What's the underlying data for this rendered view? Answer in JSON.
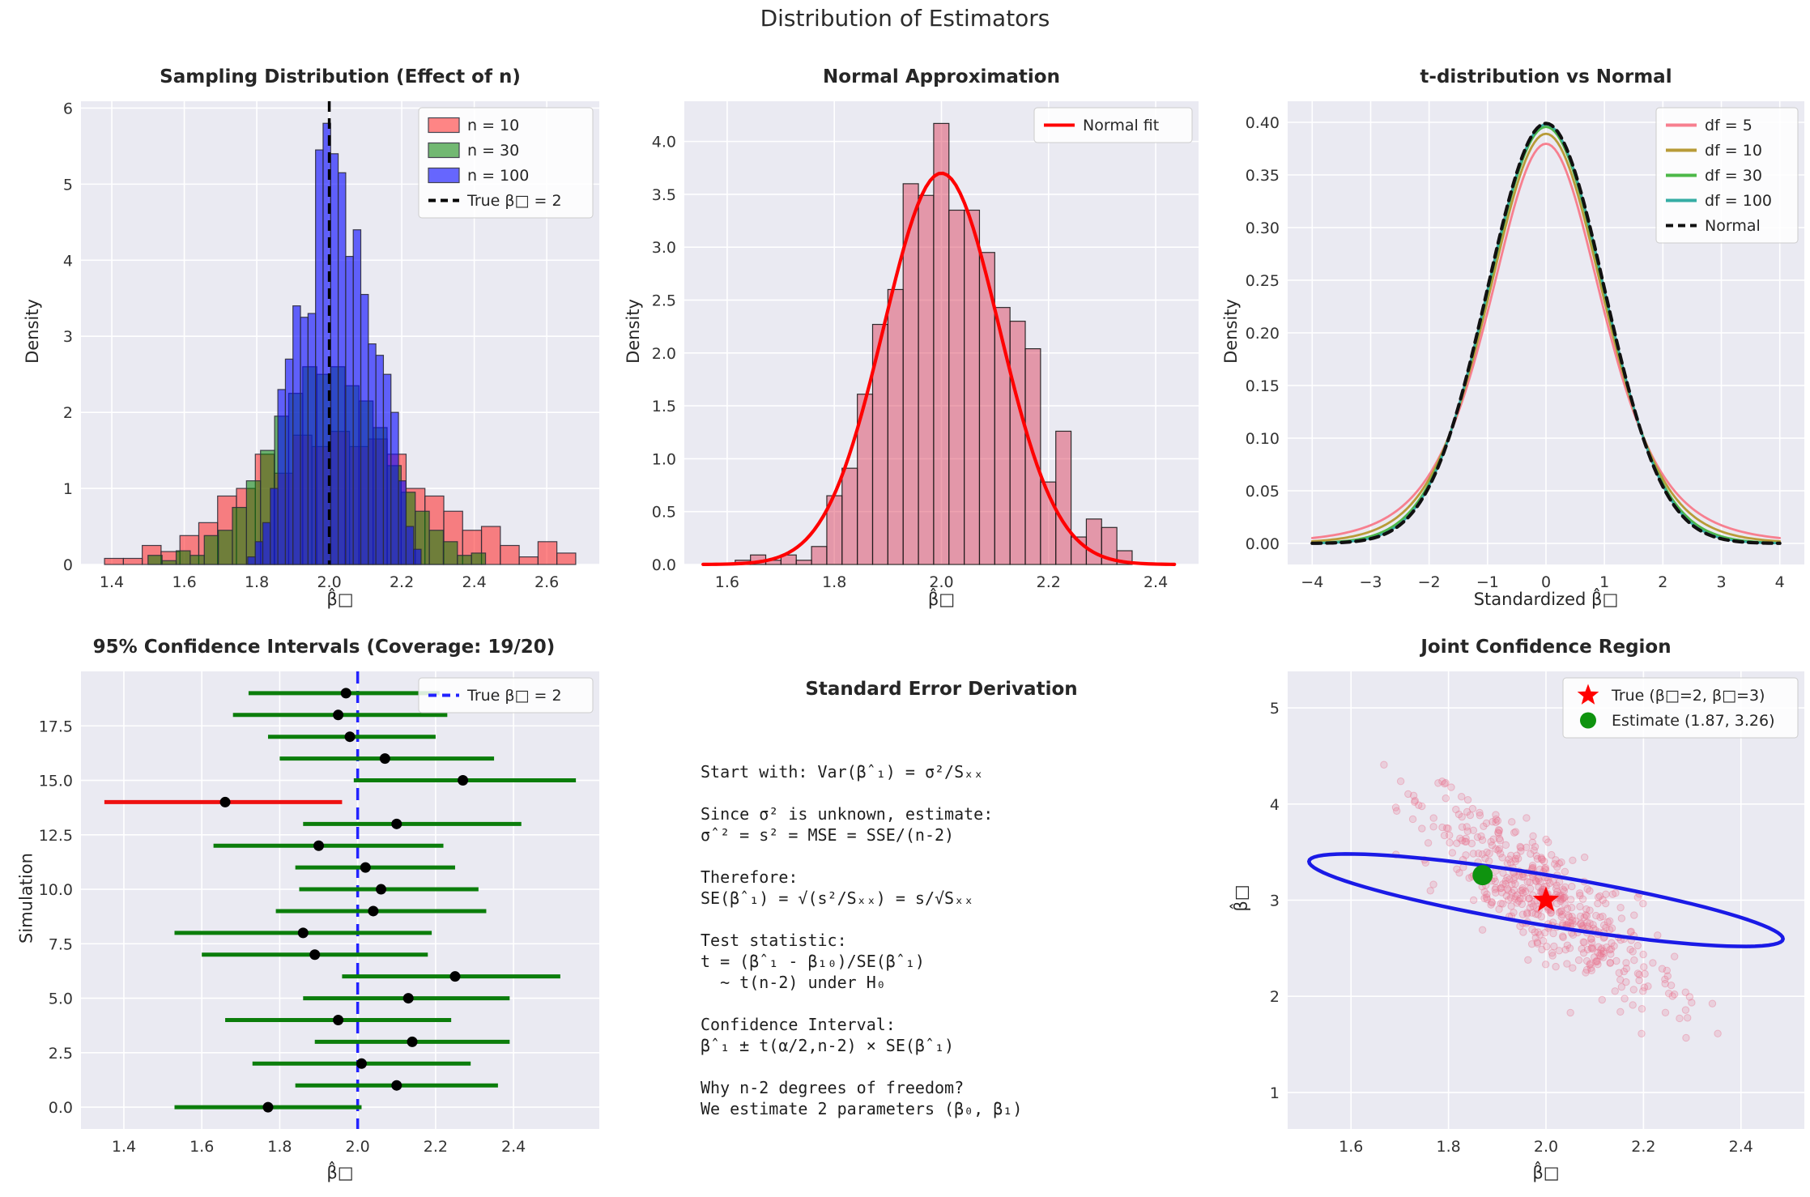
{
  "figure": {
    "title": "Distribution of Estimators",
    "background": "#ffffff",
    "axes_background": "#eaeaf2",
    "grid_color": "#ffffff",
    "text_color": "#262626",
    "tick_color": "#333333"
  },
  "chart_data": [
    {
      "id": "sampling",
      "type": "histogram",
      "title": "Sampling Distribution (Effect of n)",
      "xlabel": "β̂□",
      "ylabel": "Density",
      "xlim": [
        1.315,
        2.745
      ],
      "ylim": [
        0,
        6.09
      ],
      "xtick_vals": [
        1.4,
        1.6,
        1.8,
        2.0,
        2.2,
        2.4,
        2.6
      ],
      "xtick_labels": [
        "1.4",
        "1.6",
        "1.8",
        "2.0",
        "2.2",
        "2.4",
        "2.6"
      ],
      "ytick_vals": [
        0,
        1,
        2,
        3,
        4,
        5,
        6
      ],
      "ytick_labels": [
        "0",
        "1",
        "2",
        "3",
        "4",
        "5",
        "6"
      ],
      "series": [
        {
          "name": "n = 10",
          "fill": "#ff2222",
          "fill_opacity": 0.55,
          "edge": "#2e2e38",
          "start": 1.38,
          "binwidth": 0.052,
          "heights": [
            0.08,
            0.08,
            0.25,
            0.17,
            0.38,
            0.55,
            0.9,
            1.0,
            1.45,
            1.2,
            1.7,
            1.55,
            1.75,
            1.55,
            1.65,
            1.45,
            1.0,
            0.9,
            0.7,
            0.45,
            0.5,
            0.25,
            0.1,
            0.3,
            0.15
          ]
        },
        {
          "name": "n = 30",
          "fill": "#007f00",
          "fill_opacity": 0.55,
          "edge": "#2e2e38",
          "start": 1.5,
          "binwidth": 0.0388,
          "heights": [
            0.12,
            0.05,
            0.18,
            0.12,
            0.38,
            0.45,
            0.75,
            1.1,
            1.5,
            1.95,
            2.25,
            2.6,
            2.5,
            2.6,
            2.35,
            2.15,
            1.8,
            1.3,
            0.95,
            0.7,
            0.45,
            0.3,
            0.12,
            0.15
          ]
        },
        {
          "name": "n = 100",
          "fill": "#0a0aff",
          "fill_opacity": 0.62,
          "edge": "#2e2e38",
          "start": 1.775,
          "binwidth": 0.0208,
          "heights": [
            0.1,
            0.3,
            0.55,
            1.0,
            2.3,
            2.7,
            3.4,
            3.25,
            3.3,
            5.45,
            5.8,
            5.4,
            5.15,
            4.05,
            4.4,
            3.55,
            2.9,
            2.75,
            2.5,
            2.0,
            1.1,
            0.5,
            0.2
          ]
        }
      ],
      "vline": {
        "x": 2.0,
        "color": "#000000",
        "dash": "13 8",
        "label": "True β□ = 2"
      },
      "legend": {
        "rows": [
          {
            "m": "patch",
            "color": "#ff2222",
            "op": 0.55,
            "label": "n = 10"
          },
          {
            "m": "patch",
            "color": "#007f00",
            "op": 0.55,
            "label": "n = 30"
          },
          {
            "m": "patch",
            "color": "#0a0aff",
            "op": 0.62,
            "label": "n = 100"
          },
          {
            "m": "line",
            "color": "#000000",
            "dash": "9 6",
            "label": "True β□ = 2"
          }
        ]
      }
    },
    {
      "id": "normal_approx",
      "type": "histfit",
      "title": "Normal Approximation",
      "xlabel": "β̂□",
      "ylabel": "Density",
      "xlim": [
        1.52,
        2.48
      ],
      "ylim": [
        0,
        4.38
      ],
      "xtick_vals": [
        1.6,
        1.8,
        2.0,
        2.2,
        2.4
      ],
      "xtick_labels": [
        "1.6",
        "1.8",
        "2.0",
        "2.2",
        "2.4"
      ],
      "ytick_vals": [
        0,
        0.5,
        1.0,
        1.5,
        2.0,
        2.5,
        3.0,
        3.5,
        4.0
      ],
      "ytick_labels": [
        "0.0",
        "0.5",
        "1.0",
        "1.5",
        "2.0",
        "2.5",
        "3.0",
        "3.5",
        "4.0"
      ],
      "hist": {
        "fill": "#dc3c5a",
        "fill_opacity": 0.48,
        "edge": "#1a1a1a",
        "start": 1.615,
        "binwidth": 0.0285,
        "heights": [
          0.04,
          0.09,
          0.04,
          0.09,
          0.04,
          0.17,
          0.65,
          0.91,
          1.61,
          2.27,
          2.6,
          3.6,
          3.49,
          4.17,
          3.35,
          3.35,
          2.95,
          2.43,
          2.3,
          2.04,
          0.78,
          1.26,
          0.26,
          0.43,
          0.35,
          0.13
        ]
      },
      "curve": {
        "color": "#ff0000",
        "mean": 2.0,
        "sd": 0.1078,
        "peak": 3.7,
        "range": [
          1.555,
          2.435
        ]
      },
      "legend": {
        "rows": [
          {
            "m": "line",
            "color": "#ff0000",
            "label": "Normal fit"
          }
        ]
      }
    },
    {
      "id": "tdist",
      "type": "curves",
      "title": "t-distribution vs Normal",
      "xlabel": "Standardized β̂□",
      "ylabel": "Density",
      "xlim": [
        -4.42,
        4.42
      ],
      "ylim": [
        -0.02,
        0.42
      ],
      "curve_range": [
        -4,
        4
      ],
      "xtick_vals": [
        -4,
        -3,
        -2,
        -1,
        0,
        1,
        2,
        3,
        4
      ],
      "xtick_labels": [
        "−4",
        "−3",
        "−2",
        "−1",
        "0",
        "1",
        "2",
        "3",
        "4"
      ],
      "ytick_vals": [
        0.0,
        0.05,
        0.1,
        0.15,
        0.2,
        0.25,
        0.3,
        0.35,
        0.4
      ],
      "ytick_labels": [
        "0.00",
        "0.05",
        "0.10",
        "0.15",
        "0.20",
        "0.25",
        "0.30",
        "0.35",
        "0.40"
      ],
      "series": [
        {
          "label": "df = 5",
          "df": 5,
          "color": "#f77f8f",
          "peak": 0.3796
        },
        {
          "label": "df = 10",
          "df": 10,
          "color": "#b89b38",
          "peak": 0.3891
        },
        {
          "label": "df = 30",
          "df": 30,
          "color": "#4db848",
          "peak": 0.3964
        },
        {
          "label": "df = 100",
          "df": 100,
          "color": "#35ada4",
          "peak": 0.3979
        },
        {
          "label": "Normal",
          "normal": true,
          "color": "#111111",
          "dash": "11 7",
          "peak": 0.3989
        }
      ],
      "legend": {
        "rows": [
          {
            "m": "line",
            "color": "#f77f8f",
            "label": "df = 5"
          },
          {
            "m": "line",
            "color": "#b89b38",
            "label": "df = 10"
          },
          {
            "m": "line",
            "color": "#4db848",
            "label": "df = 30"
          },
          {
            "m": "line",
            "color": "#35ada4",
            "label": "df = 100"
          },
          {
            "m": "line",
            "color": "#111111",
            "dash": "9 6",
            "label": "Normal"
          }
        ]
      }
    },
    {
      "id": "ci",
      "type": "ci",
      "title": "95% Confidence Intervals (Coverage: 19/20)",
      "xlabel": "β̂□",
      "ylabel": "Simulation",
      "xlim": [
        1.29,
        2.62
      ],
      "ylim": [
        -1,
        20
      ],
      "xtick_vals": [
        1.4,
        1.6,
        1.8,
        2.0,
        2.2,
        2.4
      ],
      "xtick_labels": [
        "1.4",
        "1.6",
        "1.8",
        "2.0",
        "2.2",
        "2.4"
      ],
      "ytick_vals": [
        0,
        2.5,
        5,
        7.5,
        10,
        12.5,
        15,
        17.5
      ],
      "ytick_labels": [
        "0.0",
        "2.5",
        "5.0",
        "7.5",
        "10.0",
        "12.5",
        "15.0",
        "17.5"
      ],
      "covered_color": "#0b7d0b",
      "missed_color": "#ee1111",
      "marker_color": "#000000",
      "intervals": [
        {
          "sim": 0,
          "lo": 1.53,
          "est": 1.77,
          "hi": 2.01,
          "covers": true
        },
        {
          "sim": 1,
          "lo": 1.84,
          "est": 2.1,
          "hi": 2.36,
          "covers": true
        },
        {
          "sim": 2,
          "lo": 1.73,
          "est": 2.01,
          "hi": 2.29,
          "covers": true
        },
        {
          "sim": 3,
          "lo": 1.89,
          "est": 2.14,
          "hi": 2.39,
          "covers": true
        },
        {
          "sim": 4,
          "lo": 1.66,
          "est": 1.95,
          "hi": 2.24,
          "covers": true
        },
        {
          "sim": 5,
          "lo": 1.86,
          "est": 2.13,
          "hi": 2.39,
          "covers": true
        },
        {
          "sim": 6,
          "lo": 1.96,
          "est": 2.25,
          "hi": 2.52,
          "covers": true
        },
        {
          "sim": 7,
          "lo": 1.6,
          "est": 1.89,
          "hi": 2.18,
          "covers": true
        },
        {
          "sim": 8,
          "lo": 1.53,
          "est": 1.86,
          "hi": 2.19,
          "covers": true
        },
        {
          "sim": 9,
          "lo": 1.79,
          "est": 2.04,
          "hi": 2.33,
          "covers": true
        },
        {
          "sim": 10,
          "lo": 1.85,
          "est": 2.06,
          "hi": 2.31,
          "covers": true
        },
        {
          "sim": 11,
          "lo": 1.84,
          "est": 2.02,
          "hi": 2.25,
          "covers": true
        },
        {
          "sim": 12,
          "lo": 1.63,
          "est": 1.9,
          "hi": 2.22,
          "covers": true
        },
        {
          "sim": 13,
          "lo": 1.86,
          "est": 2.1,
          "hi": 2.42,
          "covers": true
        },
        {
          "sim": 14,
          "lo": 1.35,
          "est": 1.66,
          "hi": 1.96,
          "covers": false
        },
        {
          "sim": 15,
          "lo": 1.99,
          "est": 2.27,
          "hi": 2.56,
          "covers": true
        },
        {
          "sim": 16,
          "lo": 1.8,
          "est": 2.07,
          "hi": 2.35,
          "covers": true
        },
        {
          "sim": 17,
          "lo": 1.77,
          "est": 1.98,
          "hi": 2.2,
          "covers": true
        },
        {
          "sim": 18,
          "lo": 1.68,
          "est": 1.95,
          "hi": 2.23,
          "covers": true
        },
        {
          "sim": 19,
          "lo": 1.72,
          "est": 1.97,
          "hi": 2.21,
          "covers": true
        }
      ],
      "vline": {
        "x": 2.0,
        "color": "#2222ff",
        "dash": "15 9",
        "label": "True β□ = 2"
      },
      "legend": {
        "rows": [
          {
            "m": "line",
            "color": "#2222ff",
            "dash": "10 7",
            "label": "True β□ = 2"
          }
        ]
      }
    },
    {
      "id": "derivation",
      "type": "text",
      "title": "Standard Error Derivation",
      "lines": [
        "Start with: Var(βˆ₁) = σ²/Sₓₓ",
        "",
        "Since σ² is unknown, estimate:",
        "σˆ² = s² = MSE = SSE/(n-2)",
        "",
        "Therefore:",
        "SE(βˆ₁) = √(s²/Sₓₓ) = s/√Sₓₓ",
        "",
        "Test statistic:",
        "t = (βˆ₁ - β₁₀)/SE(βˆ₁)",
        "  ~ t(n-2) under H₀",
        "",
        "Confidence Interval:",
        "βˆ₁ ± t(α/2,n-2) × SE(βˆ₁)",
        "",
        "Why n-2 degrees of freedom?",
        "We estimate 2 parameters (β₀, β₁)"
      ]
    },
    {
      "id": "joint",
      "type": "scatter_ellipse",
      "title": "Joint Confidence Region",
      "xlabel": "β̂□",
      "ylabel": "β̂□",
      "xlim": [
        1.47,
        2.53
      ],
      "ylim": [
        0.62,
        5.38
      ],
      "xtick_vals": [
        1.6,
        1.8,
        2.0,
        2.2,
        2.4
      ],
      "xtick_labels": [
        "1.6",
        "1.8",
        "2.0",
        "2.2",
        "2.4"
      ],
      "ytick_vals": [
        1,
        2,
        3,
        4,
        5
      ],
      "ytick_labels": [
        "1",
        "2",
        "3",
        "4",
        "5"
      ],
      "scatter": {
        "count": 520,
        "seed": 20250101,
        "cx": 2.0,
        "cy": 3.0,
        "sx": 0.125,
        "slope_sd": 0.45,
        "noise_sd": 0.28,
        "color": "#e8738f"
      },
      "ellipse": {
        "cx": 2.0,
        "cy": 3.0,
        "ux": 0.485,
        "uy": -0.42,
        "vx": 0.035,
        "vy": 0.235,
        "color": "#1a1ae6"
      },
      "true_point": {
        "x": 2.0,
        "y": 3.0,
        "color": "#ff0000",
        "label": "True (β□=2, β□=3)"
      },
      "estimate_point": {
        "x": 1.87,
        "y": 3.26,
        "color": "#0f930f",
        "label": "Estimate (1.87, 3.26)"
      },
      "legend": {
        "rows": [
          {
            "m": "star",
            "color": "#ff0000",
            "label": "True (β□=2, β□=3)"
          },
          {
            "m": "dot",
            "color": "#0f930f",
            "label": "Estimate (1.87, 3.26)"
          }
        ]
      }
    }
  ]
}
